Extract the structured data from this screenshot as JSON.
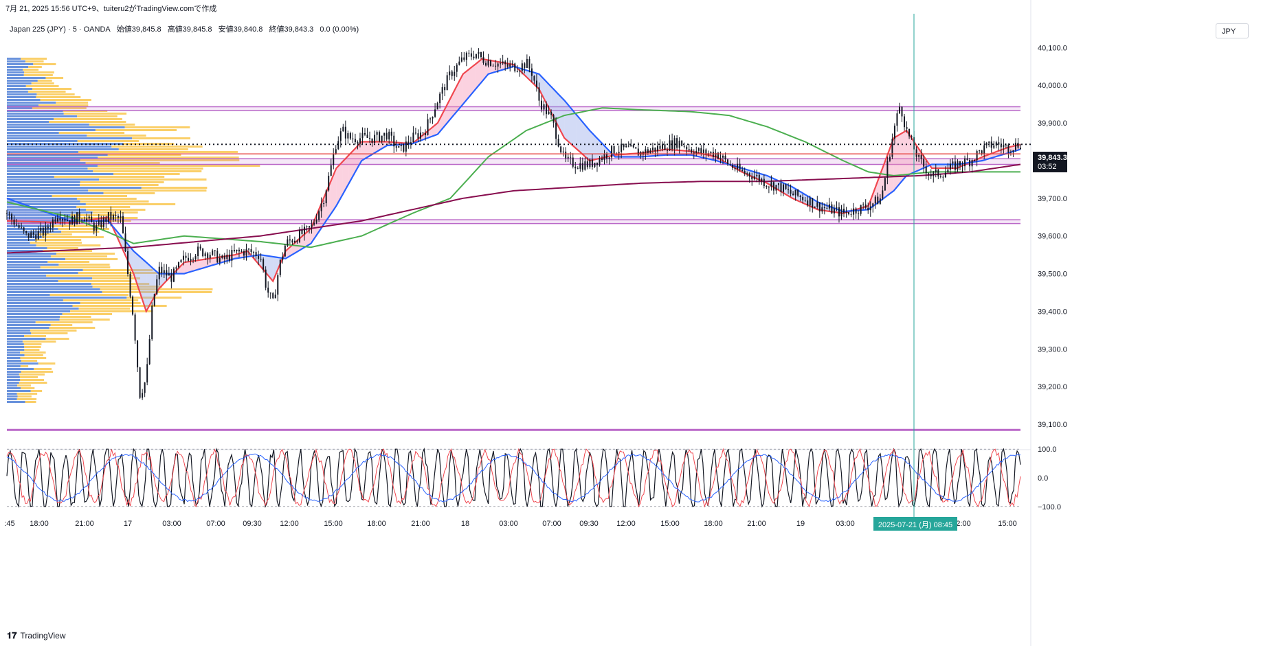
{
  "header": {
    "snapshot_text": "7月 21, 2025 15:56 UTC+9、tuiteru2がTradingView.comで作成",
    "symbol": "Japan 225 (JPY) · 5 · OANDA",
    "open_label": "始値39,845.8",
    "high_label": "高値39,845.8",
    "low_label": "安値39,840.8",
    "close_label": "終値39,843.3",
    "change_label": "0.0 (0.00%)",
    "currency": "JPY"
  },
  "price_tag": {
    "price": "39,843.3",
    "countdown": "03:52"
  },
  "crosshair_date_label": "2025-07-21 (月)  08:45",
  "brand": {
    "name": "TradingView"
  },
  "colors": {
    "up_candle": "#131722",
    "ma_fast": "#f0474f",
    "ma_mid": "#2962ff",
    "ma_long": "#4caf50",
    "ma_longest": "#880e4f",
    "vp_up": "#4f7fd6",
    "vp_down": "#f9c74f",
    "zone_line": "#ba68c8",
    "crosshair": "#26a69a",
    "stoch_k": "#131722",
    "stoch_d": "#f0474f",
    "stoch_slow": "#2962ff"
  },
  "chart_data": [
    {
      "type": "line",
      "title": "Japan 225 (JPY) · 5 · OANDA",
      "y_axis_ticks": [
        "40,100.0",
        "40,000.0",
        "39,900.0",
        "39,800.0",
        "39,700.0",
        "39,600.0",
        "39,500.0",
        "39,400.0",
        "39,300.0",
        "39,200.0",
        "39,100.0"
      ],
      "ylim": [
        39060,
        40190
      ],
      "x_tick_labels": [
        ":45",
        "18:00",
        "21:00",
        "17",
        "03:00",
        "07:00",
        "09:30",
        "12:00",
        "15:00",
        "18:00",
        "21:00",
        "18",
        "03:00",
        "07:00",
        "09:30",
        "12:00",
        "15:00",
        "18:00",
        "21:00",
        "19",
        "03:00",
        "2:00",
        "15:00"
      ],
      "horizontal_levels": [
        39943,
        39933,
        39805,
        39790,
        39643,
        39633,
        39085
      ],
      "current_price": 39843.3,
      "red_line_price": 39818,
      "price_series": [
        [
          0,
          39660
        ],
        [
          3,
          39600
        ],
        [
          6,
          39610
        ],
        [
          8,
          39660
        ],
        [
          10,
          39640
        ],
        [
          12,
          39655
        ],
        [
          14,
          39620
        ],
        [
          16,
          39650
        ],
        [
          18,
          39645
        ],
        [
          20,
          39380
        ],
        [
          21,
          39180
        ],
        [
          22,
          39220
        ],
        [
          23,
          39420
        ],
        [
          24,
          39510
        ],
        [
          26,
          39490
        ],
        [
          28,
          39540
        ],
        [
          30,
          39560
        ],
        [
          32,
          39555
        ],
        [
          34,
          39535
        ],
        [
          36,
          39555
        ],
        [
          38,
          39560
        ],
        [
          40,
          39550
        ],
        [
          41,
          39460
        ],
        [
          42,
          39420
        ],
        [
          43,
          39520
        ],
        [
          44,
          39580
        ],
        [
          46,
          39600
        ],
        [
          48,
          39620
        ],
        [
          50,
          39700
        ],
        [
          51,
          39770
        ],
        [
          52,
          39850
        ],
        [
          53,
          39880
        ],
        [
          54,
          39860
        ],
        [
          56,
          39860
        ],
        [
          58,
          39860
        ],
        [
          60,
          39870
        ],
        [
          62,
          39825
        ],
        [
          64,
          39860
        ],
        [
          66,
          39880
        ],
        [
          68,
          39960
        ],
        [
          70,
          40030
        ],
        [
          72,
          40070
        ],
        [
          74,
          40085
        ],
        [
          75,
          40070
        ],
        [
          77,
          40060
        ],
        [
          79,
          40050
        ],
        [
          81,
          40050
        ],
        [
          82,
          40060
        ],
        [
          83,
          40030
        ],
        [
          84,
          39960
        ],
        [
          86,
          39910
        ],
        [
          88,
          39800
        ],
        [
          90,
          39790
        ],
        [
          92,
          39790
        ],
        [
          94,
          39810
        ],
        [
          96,
          39830
        ],
        [
          98,
          39830
        ],
        [
          100,
          39820
        ],
        [
          102,
          39830
        ],
        [
          104,
          39840
        ],
        [
          106,
          39850
        ],
        [
          108,
          39830
        ],
        [
          110,
          39820
        ],
        [
          112,
          39820
        ],
        [
          114,
          39790
        ],
        [
          116,
          39770
        ],
        [
          118,
          39760
        ],
        [
          120,
          39740
        ],
        [
          122,
          39730
        ],
        [
          124,
          39710
        ],
        [
          126,
          39700
        ],
        [
          128,
          39680
        ],
        [
          130,
          39670
        ],
        [
          132,
          39660
        ],
        [
          134,
          39670
        ],
        [
          136,
          39680
        ],
        [
          138,
          39700
        ],
        [
          140,
          39880
        ],
        [
          141,
          39950
        ],
        [
          142,
          39880
        ],
        [
          144,
          39800
        ],
        [
          146,
          39760
        ],
        [
          148,
          39770
        ],
        [
          150,
          39790
        ],
        [
          152,
          39800
        ],
        [
          154,
          39830
        ],
        [
          156,
          39845
        ],
        [
          158,
          39835
        ],
        [
          160,
          39845
        ]
      ],
      "series": [
        {
          "name": "",
          "color_key": "ma_fast",
          "values": [
            [
              0,
              39640
            ],
            [
              10,
              39635
            ],
            [
              16,
              39650
            ],
            [
              20,
              39500
            ],
            [
              22,
              39400
            ],
            [
              24,
              39460
            ],
            [
              28,
              39530
            ],
            [
              32,
              39540
            ],
            [
              36,
              39550
            ],
            [
              38,
              39560
            ],
            [
              42,
              39480
            ],
            [
              44,
              39560
            ],
            [
              48,
              39620
            ],
            [
              52,
              39780
            ],
            [
              56,
              39850
            ],
            [
              60,
              39850
            ],
            [
              64,
              39845
            ],
            [
              68,
              39900
            ],
            [
              72,
              40030
            ],
            [
              75,
              40070
            ],
            [
              80,
              40055
            ],
            [
              84,
              39990
            ],
            [
              88,
              39860
            ],
            [
              92,
              39800
            ],
            [
              96,
              39815
            ],
            [
              100,
              39820
            ],
            [
              104,
              39830
            ],
            [
              108,
              39825
            ],
            [
              112,
              39810
            ],
            [
              116,
              39770
            ],
            [
              120,
              39740
            ],
            [
              124,
              39700
            ],
            [
              128,
              39670
            ],
            [
              132,
              39660
            ],
            [
              136,
              39680
            ],
            [
              140,
              39860
            ],
            [
              142,
              39880
            ],
            [
              146,
              39780
            ],
            [
              150,
              39780
            ],
            [
              154,
              39810
            ],
            [
              158,
              39835
            ],
            [
              160,
              39843
            ]
          ]
        },
        {
          "name": "",
          "color_key": "ma_mid",
          "values": [
            [
              0,
              39700
            ],
            [
              10,
              39640
            ],
            [
              16,
              39640
            ],
            [
              20,
              39560
            ],
            [
              24,
              39500
            ],
            [
              28,
              39500
            ],
            [
              32,
              39520
            ],
            [
              36,
              39540
            ],
            [
              40,
              39550
            ],
            [
              44,
              39540
            ],
            [
              48,
              39580
            ],
            [
              52,
              39680
            ],
            [
              56,
              39800
            ],
            [
              60,
              39840
            ],
            [
              64,
              39845
            ],
            [
              68,
              39870
            ],
            [
              72,
              39950
            ],
            [
              76,
              40030
            ],
            [
              80,
              40050
            ],
            [
              84,
              40030
            ],
            [
              88,
              39960
            ],
            [
              92,
              39880
            ],
            [
              96,
              39810
            ],
            [
              100,
              39810
            ],
            [
              104,
              39815
            ],
            [
              108,
              39815
            ],
            [
              112,
              39800
            ],
            [
              116,
              39780
            ],
            [
              120,
              39760
            ],
            [
              124,
              39730
            ],
            [
              128,
              39690
            ],
            [
              132,
              39665
            ],
            [
              136,
              39670
            ],
            [
              140,
              39720
            ],
            [
              142,
              39760
            ],
            [
              146,
              39790
            ],
            [
              150,
              39790
            ],
            [
              154,
              39800
            ],
            [
              158,
              39820
            ],
            [
              160,
              39830
            ]
          ]
        },
        {
          "name": "",
          "color_key": "ma_long",
          "values": [
            [
              0,
              39690
            ],
            [
              10,
              39650
            ],
            [
              16,
              39610
            ],
            [
              20,
              39580
            ],
            [
              28,
              39600
            ],
            [
              36,
              39590
            ],
            [
              40,
              39585
            ],
            [
              48,
              39570
            ],
            [
              56,
              39600
            ],
            [
              64,
              39660
            ],
            [
              70,
              39700
            ],
            [
              76,
              39810
            ],
            [
              82,
              39880
            ],
            [
              88,
              39920
            ],
            [
              94,
              39940
            ],
            [
              100,
              39935
            ],
            [
              108,
              39930
            ],
            [
              114,
              39920
            ],
            [
              120,
              39890
            ],
            [
              126,
              39850
            ],
            [
              132,
              39800
            ],
            [
              136,
              39770
            ],
            [
              140,
              39760
            ],
            [
              146,
              39770
            ],
            [
              152,
              39770
            ],
            [
              160,
              39770
            ]
          ]
        },
        {
          "name": "",
          "color_key": "ma_longest",
          "values": [
            [
              0,
              39555
            ],
            [
              20,
              39570
            ],
            [
              40,
              39600
            ],
            [
              56,
              39640
            ],
            [
              64,
              39670
            ],
            [
              72,
              39700
            ],
            [
              80,
              39720
            ],
            [
              90,
              39730
            ],
            [
              100,
              39740
            ],
            [
              110,
              39745
            ],
            [
              120,
              39745
            ],
            [
              128,
              39750
            ],
            [
              136,
              39755
            ],
            [
              144,
              39760
            ],
            [
              152,
              39770
            ],
            [
              160,
              39790
            ]
          ]
        }
      ]
    },
    {
      "type": "line",
      "title": "",
      "y_axis_ticks": [
        "100.0",
        "0.0",
        "−100.0"
      ],
      "ylim": [
        -110,
        110
      ]
    }
  ]
}
